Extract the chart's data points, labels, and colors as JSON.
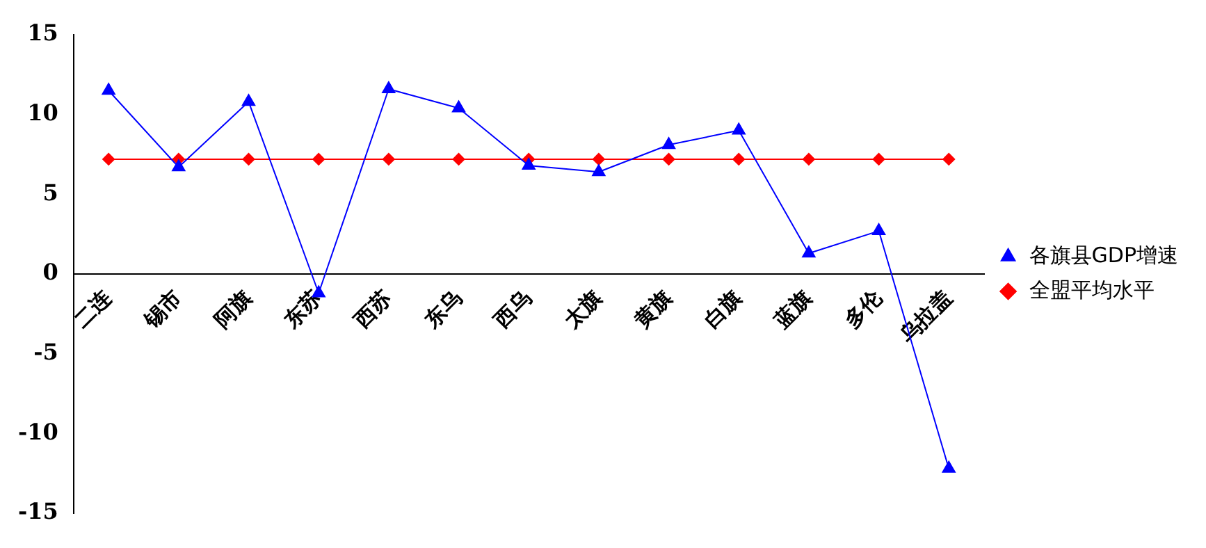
{
  "chart_data": {
    "type": "line",
    "categories": [
      "二连",
      "锡市",
      "阿旗",
      "东苏",
      "西苏",
      "东乌",
      "西乌",
      "太旗",
      "黄旗",
      "白旗",
      "蓝旗",
      "多伦",
      "乌拉盖"
    ],
    "series": [
      {
        "name": "各旗县GDP增速",
        "color": "#0000ff",
        "marker": "triangle",
        "values": [
          11.5,
          6.7,
          10.8,
          -1.2,
          11.6,
          10.4,
          6.8,
          6.4,
          8.1,
          9.0,
          1.3,
          2.7,
          -12.2
        ]
      },
      {
        "name": "全盟平均水平",
        "color": "#ff0000",
        "marker": "diamond",
        "values": [
          7.2,
          7.2,
          7.2,
          7.2,
          7.2,
          7.2,
          7.2,
          7.2,
          7.2,
          7.2,
          7.2,
          7.2,
          7.2
        ]
      }
    ],
    "ylim": [
      -15,
      15
    ],
    "yticks": [
      -15,
      -10,
      -5,
      0,
      5,
      10,
      15
    ],
    "grid": false,
    "legend": "right",
    "line_style": "solid"
  }
}
